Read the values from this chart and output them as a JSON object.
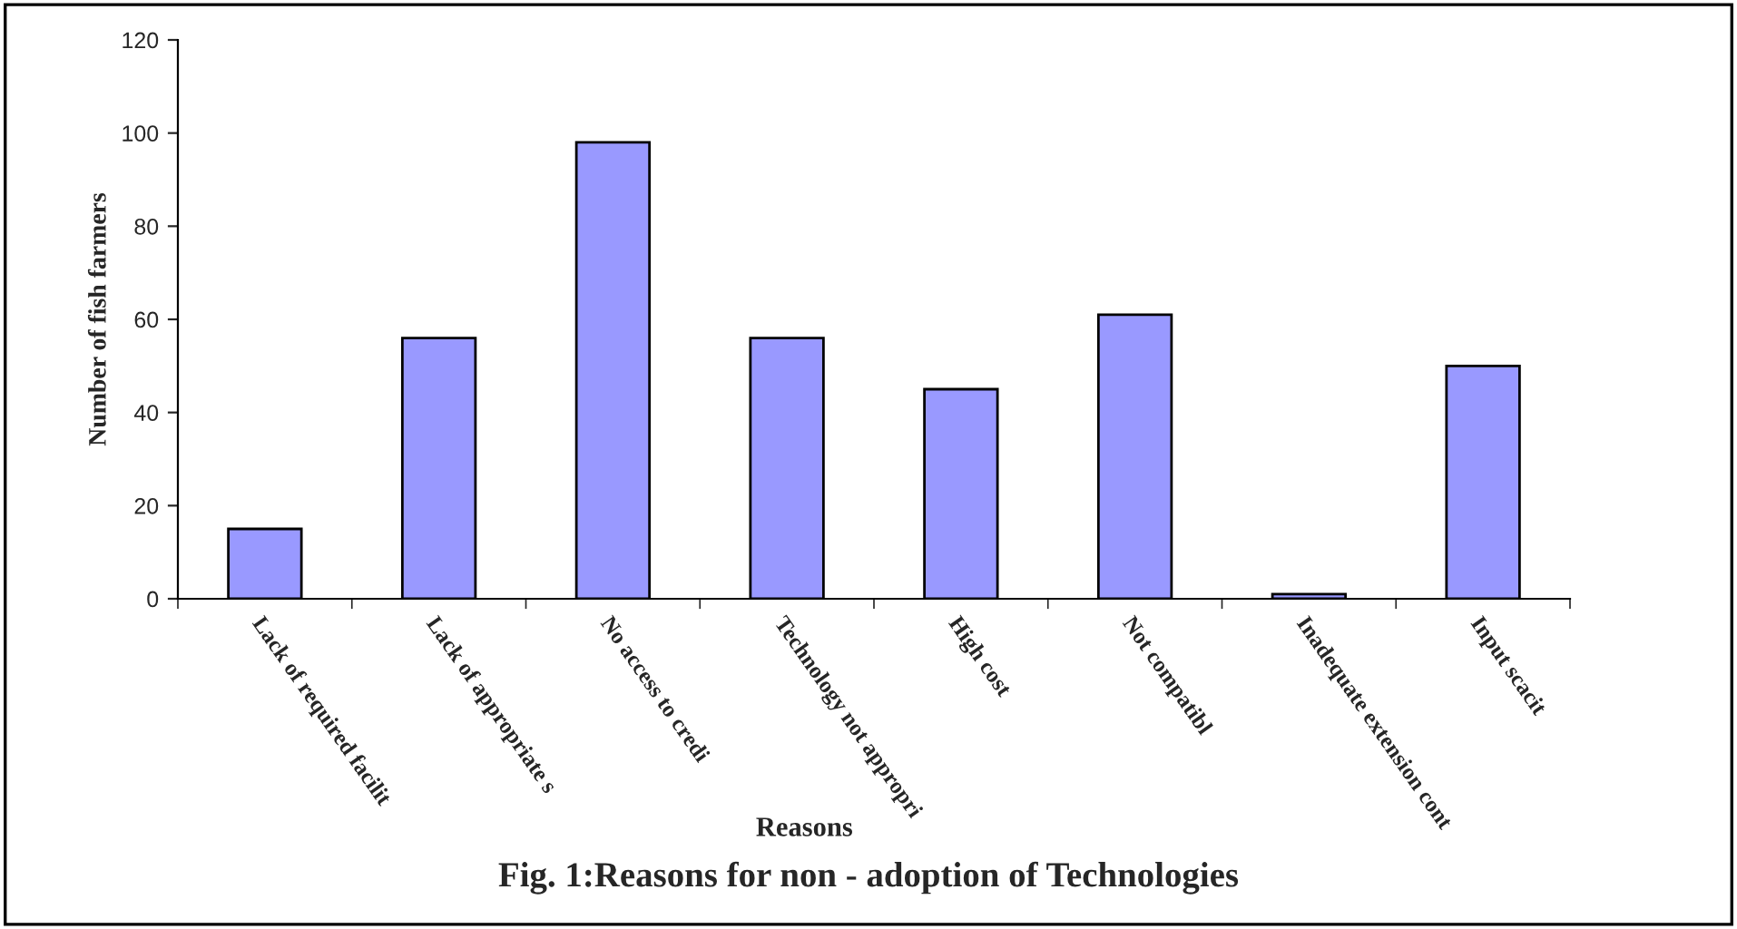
{
  "chart_data": {
    "type": "bar",
    "title": "Fig. 1:Reasons for non - adoption of Technologies",
    "xlabel": "Reasons",
    "ylabel": "Number of fish farmers",
    "categories": [
      "Lack of required facilit",
      "Lack of appropriate s",
      "No access to credi",
      "Technology not appropri",
      "High cost",
      "Not compatibl",
      "Inadequate extension cont",
      "Input scacit"
    ],
    "values": [
      15,
      56,
      98,
      56,
      45,
      61,
      1,
      50
    ],
    "color": "#9999ff",
    "ylim": [
      0,
      120
    ],
    "yticks": [
      0,
      20,
      40,
      60,
      80,
      100,
      120
    ],
    "grid": false
  }
}
